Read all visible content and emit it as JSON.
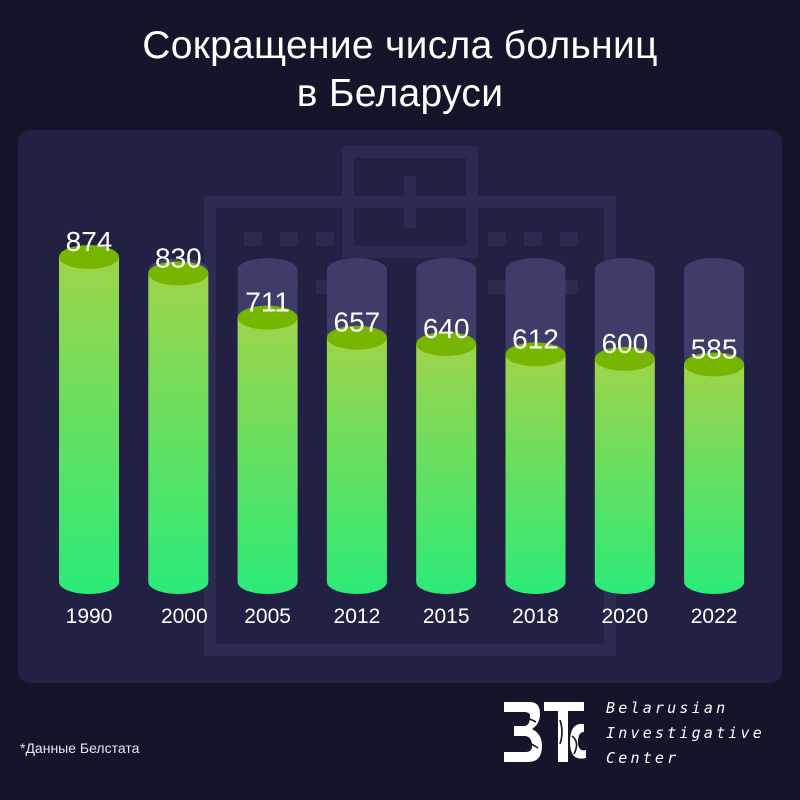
{
  "header": {
    "title_line1": "Сокращение числа больниц",
    "title_line2": "в Беларуси"
  },
  "chart_data": {
    "type": "bar",
    "categories": [
      "1990",
      "2000",
      "2005",
      "2012",
      "2015",
      "2018",
      "2020",
      "2022"
    ],
    "values": [
      874,
      830,
      711,
      657,
      640,
      612,
      600,
      585
    ],
    "title": "Сокращение числа больниц в Беларуси",
    "xlabel": "",
    "ylabel": "",
    "ylim": [
      0,
      874
    ],
    "grid": false,
    "legend": "none",
    "colors": {
      "bar_top": "#9ed44a",
      "bar_bottom": "#2beb78",
      "cap": "#76b600",
      "track": "#403c6a",
      "panel": "#222144",
      "background": "#14142b"
    }
  },
  "footnote": "*Данные Белстата",
  "brand": {
    "logo_icon": "bic-logo-icon",
    "line1": "Belarusian",
    "line2": "Investigative",
    "line3": "Center"
  }
}
